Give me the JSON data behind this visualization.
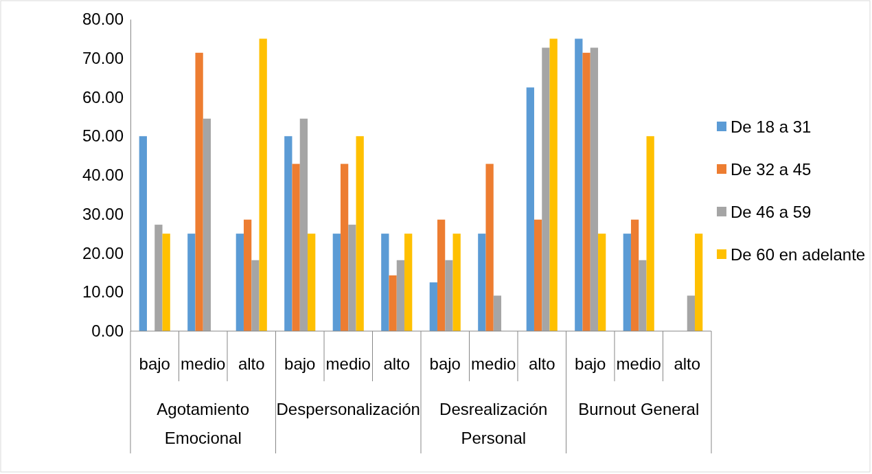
{
  "chart_data": {
    "type": "bar",
    "categories": [
      "bajo",
      "medio",
      "alto",
      "bajo",
      "medio",
      "alto",
      "bajo",
      "medio",
      "alto",
      "bajo",
      "medio",
      "alto"
    ],
    "annotations": [
      "Agotamiento Emocional",
      "Despersonalización",
      "Desrealización Personal",
      "Burnout General"
    ],
    "series": [
      {
        "name": "De 18 a 31",
        "color": "#5b9bd5",
        "values": [
          50,
          25,
          25,
          50,
          25,
          25,
          12.5,
          25,
          62.5,
          75,
          25,
          0
        ]
      },
      {
        "name": "De 32 a 45",
        "color": "#ed7d31",
        "values": [
          0,
          71.4,
          28.6,
          42.9,
          42.9,
          14.3,
          28.6,
          42.9,
          28.6,
          71.4,
          28.6,
          0
        ]
      },
      {
        "name": "De 46 a 59",
        "color": "#a5a5a5",
        "values": [
          27.3,
          54.5,
          18.2,
          54.5,
          27.3,
          18.2,
          18.2,
          9.1,
          72.7,
          72.7,
          18.2,
          9.1
        ]
      },
      {
        "name": "De 60 en adelante",
        "color": "#ffc000",
        "values": [
          25,
          0,
          75,
          25,
          50,
          25,
          25,
          0,
          75,
          25,
          50,
          25
        ]
      }
    ],
    "ylim": [
      0,
      80
    ],
    "yticks": [
      {
        "value": 0,
        "label": "0.00"
      },
      {
        "value": 10,
        "label": "10.00"
      },
      {
        "value": 20,
        "label": "20.00"
      },
      {
        "value": 30,
        "label": "30.00"
      },
      {
        "value": 40,
        "label": "40.00"
      },
      {
        "value": 50,
        "label": "50.00"
      },
      {
        "value": 60,
        "label": "60.00"
      },
      {
        "value": 70,
        "label": "70.00"
      },
      {
        "value": 80,
        "label": "80.00"
      }
    ],
    "grid": false,
    "legend": "right"
  }
}
